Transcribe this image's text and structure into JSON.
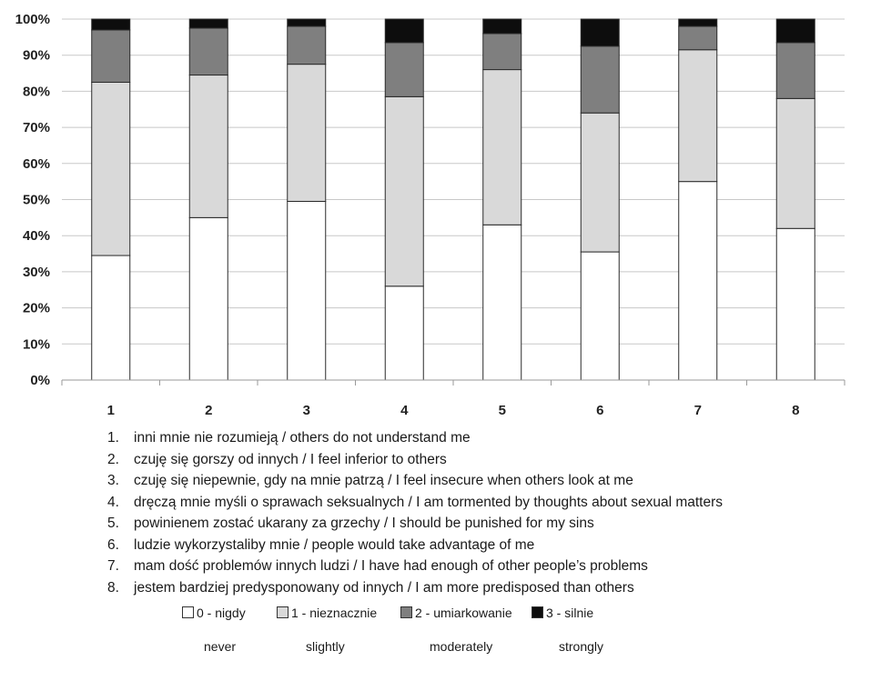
{
  "chart_data": {
    "type": "bar",
    "stacked": true,
    "orientation": "vertical",
    "categories": [
      "1",
      "2",
      "3",
      "4",
      "5",
      "6",
      "7",
      "8"
    ],
    "series": [
      {
        "name": "0 - nigdy",
        "values": [
          34.5,
          45,
          49.5,
          26,
          43,
          35.5,
          55,
          42
        ]
      },
      {
        "name": "1 - nieznacznie",
        "values": [
          48,
          39.5,
          38,
          52.5,
          43,
          38.5,
          36.5,
          36
        ]
      },
      {
        "name": "2 - umiarkowanie",
        "values": [
          14.5,
          13,
          10.5,
          15,
          10,
          18.5,
          6.5,
          15.5
        ]
      },
      {
        "name": "3 - silnie",
        "values": [
          3,
          2.5,
          2,
          6.5,
          4,
          7.5,
          2,
          6.5
        ]
      }
    ],
    "ylim": [
      0,
      100
    ],
    "yticks": [
      "0%",
      "10%",
      "20%",
      "30%",
      "40%",
      "50%",
      "60%",
      "70%",
      "80%",
      "90%",
      "100%"
    ],
    "grid": true,
    "colors": [
      "#ffffff",
      "#d9d9d9",
      "#7f7f7f",
      "#0d0d0d"
    ],
    "legend_position": "bottom"
  },
  "notes": [
    {
      "num": "1.",
      "text": "inni mnie nie rozumieją / others do not understand me"
    },
    {
      "num": "2.",
      "text": "czuję się gorszy od innych / I feel inferior to others"
    },
    {
      "num": "3.",
      "text": "czuję się niepewnie, gdy na mnie patrzą / I feel insecure when others look at me"
    },
    {
      "num": "4.",
      "text": "dręczą mnie myśli o sprawach seksualnych / I am tormented by thoughts about sexual matters"
    },
    {
      "num": "5.",
      "text": "powinienem zostać ukarany za grzechy / I should be punished for my sins"
    },
    {
      "num": "6.",
      "text": "ludzie wykorzystaliby mnie / people would take advantage of me"
    },
    {
      "num": "7.",
      "text": "mam dość problemów innych ludzi / I have had enough of other people’s problems"
    },
    {
      "num": "8.",
      "text": "jestem bardziej predysponowany od innych / I am more predisposed than others"
    }
  ],
  "legend": {
    "items": [
      {
        "label": "0 - nigdy",
        "english": "never",
        "color": "#ffffff"
      },
      {
        "label": "1 - nieznacznie",
        "english": "slightly",
        "color": "#d9d9d9"
      },
      {
        "label": "2 - umiarkowanie",
        "english": "moderately",
        "color": "#7f7f7f"
      },
      {
        "label": "3 - silnie",
        "english": "strongly",
        "color": "#0d0d0d"
      }
    ]
  }
}
